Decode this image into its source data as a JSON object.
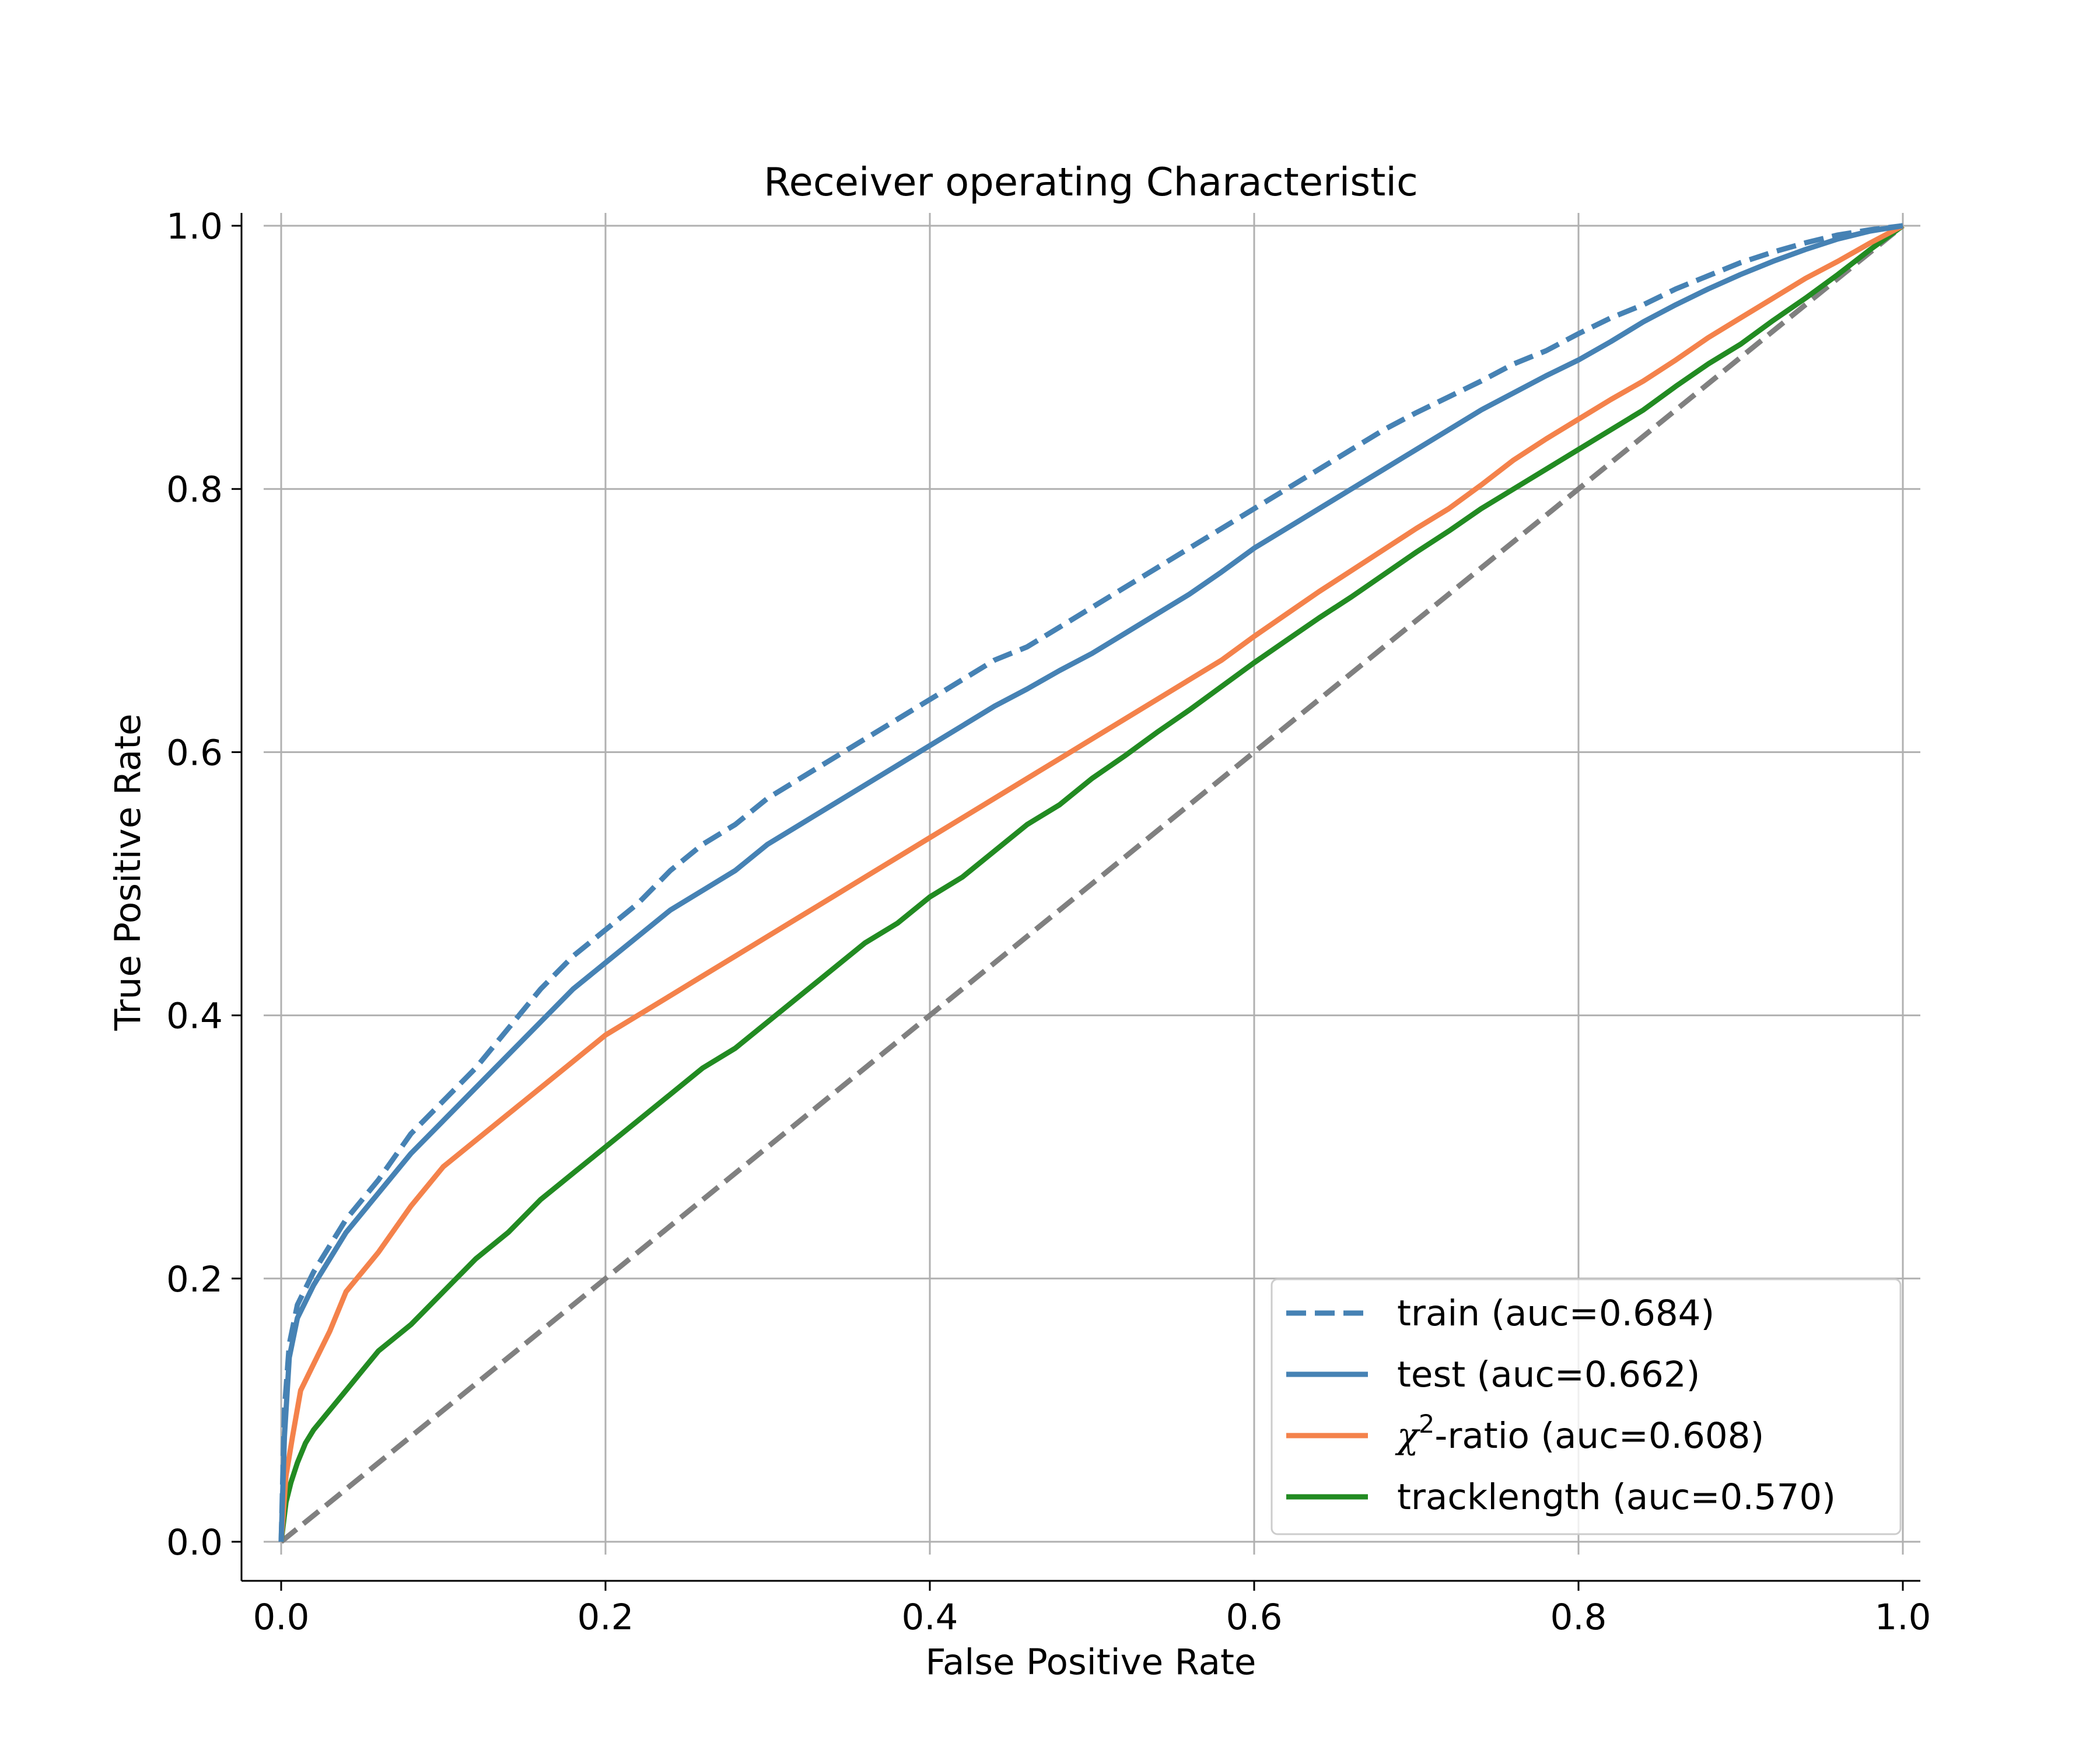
{
  "chart_data": {
    "type": "line",
    "title": "Receiver operating Characteristic",
    "xlabel": "False Positive Rate",
    "ylabel": "True Positive Rate",
    "xlim": [
      0,
      1
    ],
    "ylim": [
      0,
      1
    ],
    "xticks": [
      "0.0",
      "0.2",
      "0.4",
      "0.6",
      "0.8",
      "1.0"
    ],
    "yticks": [
      "0.0",
      "0.2",
      "0.4",
      "0.6",
      "0.8",
      "1.0"
    ],
    "grid": true,
    "legend_position": "lower-right",
    "series": [
      {
        "name": "train (auc=0.684)",
        "legend": {
          "prefix": "train (auc=0.684)",
          "sym": "",
          "sup": "",
          "suffix": ""
        },
        "color": "#4682b4",
        "style": "dashed",
        "points": [
          [
            0,
            0
          ],
          [
            0.002,
            0.1
          ],
          [
            0.005,
            0.15
          ],
          [
            0.01,
            0.18
          ],
          [
            0.02,
            0.205
          ],
          [
            0.03,
            0.225
          ],
          [
            0.04,
            0.245
          ],
          [
            0.06,
            0.275
          ],
          [
            0.08,
            0.31
          ],
          [
            0.1,
            0.335
          ],
          [
            0.12,
            0.36
          ],
          [
            0.14,
            0.39
          ],
          [
            0.16,
            0.42
          ],
          [
            0.18,
            0.445
          ],
          [
            0.2,
            0.465
          ],
          [
            0.22,
            0.485
          ],
          [
            0.24,
            0.51
          ],
          [
            0.26,
            0.53
          ],
          [
            0.28,
            0.545
          ],
          [
            0.3,
            0.565
          ],
          [
            0.32,
            0.58
          ],
          [
            0.34,
            0.595
          ],
          [
            0.36,
            0.61
          ],
          [
            0.38,
            0.625
          ],
          [
            0.4,
            0.64
          ],
          [
            0.42,
            0.655
          ],
          [
            0.44,
            0.67
          ],
          [
            0.46,
            0.68
          ],
          [
            0.48,
            0.695
          ],
          [
            0.5,
            0.71
          ],
          [
            0.52,
            0.725
          ],
          [
            0.54,
            0.74
          ],
          [
            0.56,
            0.755
          ],
          [
            0.58,
            0.77
          ],
          [
            0.6,
            0.785
          ],
          [
            0.62,
            0.8
          ],
          [
            0.64,
            0.815
          ],
          [
            0.66,
            0.83
          ],
          [
            0.68,
            0.845
          ],
          [
            0.7,
            0.858
          ],
          [
            0.72,
            0.87
          ],
          [
            0.74,
            0.882
          ],
          [
            0.76,
            0.895
          ],
          [
            0.78,
            0.905
          ],
          [
            0.8,
            0.918
          ],
          [
            0.82,
            0.93
          ],
          [
            0.84,
            0.94
          ],
          [
            0.86,
            0.952
          ],
          [
            0.88,
            0.962
          ],
          [
            0.9,
            0.972
          ],
          [
            0.92,
            0.98
          ],
          [
            0.94,
            0.987
          ],
          [
            0.96,
            0.993
          ],
          [
            0.98,
            0.997
          ],
          [
            1,
            1
          ]
        ]
      },
      {
        "name": "test (auc=0.662)",
        "legend": {
          "prefix": "test (auc=0.662)",
          "sym": "",
          "sup": "",
          "suffix": ""
        },
        "color": "#4682b4",
        "style": "solid",
        "points": [
          [
            0,
            0
          ],
          [
            0.002,
            0.08
          ],
          [
            0.005,
            0.14
          ],
          [
            0.01,
            0.17
          ],
          [
            0.02,
            0.195
          ],
          [
            0.03,
            0.215
          ],
          [
            0.04,
            0.235
          ],
          [
            0.06,
            0.265
          ],
          [
            0.08,
            0.295
          ],
          [
            0.1,
            0.32
          ],
          [
            0.12,
            0.345
          ],
          [
            0.14,
            0.37
          ],
          [
            0.16,
            0.395
          ],
          [
            0.18,
            0.42
          ],
          [
            0.2,
            0.44
          ],
          [
            0.22,
            0.46
          ],
          [
            0.24,
            0.48
          ],
          [
            0.26,
            0.495
          ],
          [
            0.28,
            0.51
          ],
          [
            0.3,
            0.53
          ],
          [
            0.32,
            0.545
          ],
          [
            0.34,
            0.56
          ],
          [
            0.36,
            0.575
          ],
          [
            0.38,
            0.59
          ],
          [
            0.4,
            0.605
          ],
          [
            0.42,
            0.62
          ],
          [
            0.44,
            0.635
          ],
          [
            0.46,
            0.648
          ],
          [
            0.48,
            0.662
          ],
          [
            0.5,
            0.675
          ],
          [
            0.52,
            0.69
          ],
          [
            0.54,
            0.705
          ],
          [
            0.56,
            0.72
          ],
          [
            0.58,
            0.737
          ],
          [
            0.6,
            0.755
          ],
          [
            0.62,
            0.77
          ],
          [
            0.64,
            0.785
          ],
          [
            0.66,
            0.8
          ],
          [
            0.68,
            0.815
          ],
          [
            0.7,
            0.83
          ],
          [
            0.72,
            0.845
          ],
          [
            0.74,
            0.86
          ],
          [
            0.76,
            0.873
          ],
          [
            0.78,
            0.886
          ],
          [
            0.8,
            0.898
          ],
          [
            0.82,
            0.912
          ],
          [
            0.84,
            0.927
          ],
          [
            0.86,
            0.94
          ],
          [
            0.88,
            0.952
          ],
          [
            0.9,
            0.963
          ],
          [
            0.92,
            0.973
          ],
          [
            0.94,
            0.982
          ],
          [
            0.96,
            0.99
          ],
          [
            0.98,
            0.996
          ],
          [
            1,
            1
          ]
        ]
      },
      {
        "name": "χ2-ratio (auc=0.608)",
        "legend": {
          "prefix": "",
          "sym": "χ",
          "sup": "2",
          "suffix": "-ratio (auc=0.608)"
        },
        "color": "#f4824b",
        "style": "solid",
        "points": [
          [
            0,
            0
          ],
          [
            0.003,
            0.05
          ],
          [
            0.007,
            0.08
          ],
          [
            0.012,
            0.115
          ],
          [
            0.02,
            0.135
          ],
          [
            0.03,
            0.16
          ],
          [
            0.04,
            0.19
          ],
          [
            0.06,
            0.22
          ],
          [
            0.08,
            0.255
          ],
          [
            0.1,
            0.285
          ],
          [
            0.12,
            0.305
          ],
          [
            0.14,
            0.325
          ],
          [
            0.16,
            0.345
          ],
          [
            0.18,
            0.365
          ],
          [
            0.2,
            0.385
          ],
          [
            0.22,
            0.4
          ],
          [
            0.24,
            0.415
          ],
          [
            0.26,
            0.43
          ],
          [
            0.28,
            0.445
          ],
          [
            0.3,
            0.46
          ],
          [
            0.32,
            0.475
          ],
          [
            0.34,
            0.49
          ],
          [
            0.36,
            0.505
          ],
          [
            0.38,
            0.52
          ],
          [
            0.4,
            0.535
          ],
          [
            0.42,
            0.55
          ],
          [
            0.44,
            0.565
          ],
          [
            0.46,
            0.58
          ],
          [
            0.48,
            0.595
          ],
          [
            0.5,
            0.61
          ],
          [
            0.52,
            0.625
          ],
          [
            0.54,
            0.64
          ],
          [
            0.56,
            0.655
          ],
          [
            0.58,
            0.67
          ],
          [
            0.6,
            0.688
          ],
          [
            0.62,
            0.705
          ],
          [
            0.64,
            0.722
          ],
          [
            0.66,
            0.738
          ],
          [
            0.68,
            0.754
          ],
          [
            0.7,
            0.77
          ],
          [
            0.72,
            0.785
          ],
          [
            0.74,
            0.803
          ],
          [
            0.76,
            0.822
          ],
          [
            0.78,
            0.838
          ],
          [
            0.8,
            0.853
          ],
          [
            0.82,
            0.868
          ],
          [
            0.84,
            0.882
          ],
          [
            0.86,
            0.898
          ],
          [
            0.88,
            0.915
          ],
          [
            0.9,
            0.93
          ],
          [
            0.92,
            0.945
          ],
          [
            0.94,
            0.96
          ],
          [
            0.96,
            0.973
          ],
          [
            0.98,
            0.987
          ],
          [
            1,
            1
          ]
        ]
      },
      {
        "name": "tracklength (auc=0.570)",
        "legend": {
          "prefix": "tracklength (auc=0.570)",
          "sym": "",
          "sup": "",
          "suffix": ""
        },
        "color": "#228b22",
        "style": "solid",
        "points": [
          [
            0,
            0
          ],
          [
            0.003,
            0.03
          ],
          [
            0.006,
            0.045
          ],
          [
            0.01,
            0.06
          ],
          [
            0.015,
            0.075
          ],
          [
            0.02,
            0.085
          ],
          [
            0.03,
            0.1
          ],
          [
            0.04,
            0.115
          ],
          [
            0.05,
            0.13
          ],
          [
            0.06,
            0.145
          ],
          [
            0.08,
            0.165
          ],
          [
            0.1,
            0.19
          ],
          [
            0.12,
            0.215
          ],
          [
            0.14,
            0.235
          ],
          [
            0.16,
            0.26
          ],
          [
            0.18,
            0.28
          ],
          [
            0.2,
            0.3
          ],
          [
            0.22,
            0.32
          ],
          [
            0.24,
            0.34
          ],
          [
            0.26,
            0.36
          ],
          [
            0.28,
            0.375
          ],
          [
            0.3,
            0.395
          ],
          [
            0.32,
            0.415
          ],
          [
            0.34,
            0.435
          ],
          [
            0.36,
            0.455
          ],
          [
            0.38,
            0.47
          ],
          [
            0.4,
            0.49
          ],
          [
            0.42,
            0.505
          ],
          [
            0.44,
            0.525
          ],
          [
            0.46,
            0.545
          ],
          [
            0.48,
            0.56
          ],
          [
            0.5,
            0.58
          ],
          [
            0.52,
            0.597
          ],
          [
            0.54,
            0.615
          ],
          [
            0.56,
            0.632
          ],
          [
            0.58,
            0.65
          ],
          [
            0.6,
            0.668
          ],
          [
            0.62,
            0.685
          ],
          [
            0.64,
            0.702
          ],
          [
            0.66,
            0.718
          ],
          [
            0.68,
            0.735
          ],
          [
            0.7,
            0.752
          ],
          [
            0.72,
            0.768
          ],
          [
            0.74,
            0.785
          ],
          [
            0.76,
            0.8
          ],
          [
            0.78,
            0.815
          ],
          [
            0.8,
            0.83
          ],
          [
            0.82,
            0.845
          ],
          [
            0.84,
            0.86
          ],
          [
            0.86,
            0.878
          ],
          [
            0.88,
            0.895
          ],
          [
            0.9,
            0.91
          ],
          [
            0.92,
            0.928
          ],
          [
            0.94,
            0.945
          ],
          [
            0.96,
            0.963
          ],
          [
            0.98,
            0.982
          ],
          [
            1,
            1
          ]
        ]
      },
      {
        "name": "",
        "legend": null,
        "color": "#808080",
        "style": "dashed",
        "points": [
          [
            0,
            0
          ],
          [
            1,
            1
          ]
        ]
      }
    ]
  }
}
